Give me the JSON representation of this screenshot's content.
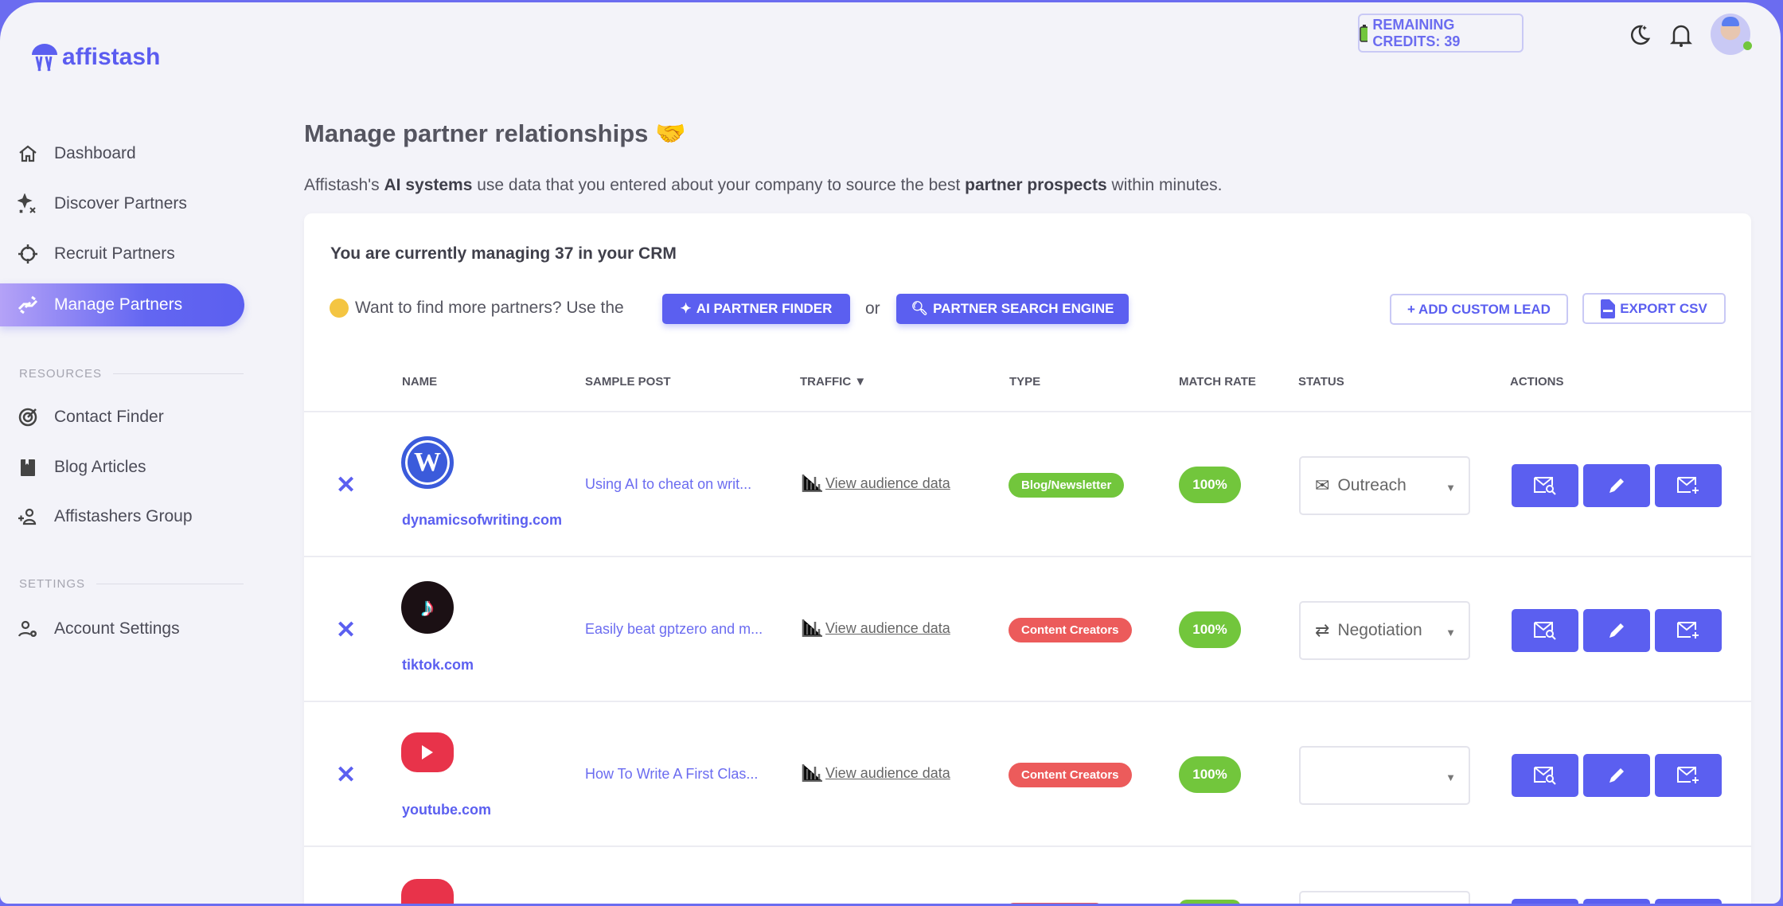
{
  "brand": {
    "name": "affistash"
  },
  "header": {
    "credits": "REMAINING CREDITS: 39"
  },
  "sidebar": {
    "items": [
      {
        "label": "Dashboard",
        "icon": "home-icon"
      },
      {
        "label": "Discover Partners",
        "icon": "sparkles-icon"
      },
      {
        "label": "Recruit Partners",
        "icon": "crosshair-icon"
      },
      {
        "label": "Manage Partners",
        "icon": "handshake-icon",
        "active": true
      }
    ],
    "resources_label": "RESOURCES",
    "resources": [
      {
        "label": "Contact Finder",
        "icon": "target-icon"
      },
      {
        "label": "Blog Articles",
        "icon": "book-icon"
      },
      {
        "label": "Affistashers Group",
        "icon": "add-user-icon"
      }
    ],
    "settings_label": "SETTINGS",
    "settings": [
      {
        "label": "Account Settings",
        "icon": "user-gear-icon"
      }
    ]
  },
  "main": {
    "title": "Manage partner relationships",
    "subtitle": {
      "p1": "Affistash's ",
      "b1": "AI systems",
      "p2": " use data that you entered about your company to source the best ",
      "b2": "partner prospects",
      "p3": " within minutes."
    },
    "managing": "You are currently managing 37 in your CRM",
    "find_more": "Want to find more partners? Use the",
    "or": "or",
    "ai_finder": "AI PARTNER FINDER",
    "search_engine": "PARTNER SEARCH ENGINE",
    "add_lead": "+ ADD CUSTOM LEAD",
    "export": "EXPORT CSV",
    "columns": [
      "NAME",
      "SAMPLE POST",
      "TRAFFIC ▼",
      "TYPE",
      "MATCH RATE",
      "STATUS",
      "ACTIONS"
    ],
    "rows": [
      {
        "domain": "dynamicsofwriting.com",
        "logo": "wordpress",
        "post": "Using AI to cheat on writ...",
        "traffic": "View audience data",
        "type": "Blog/Newsletter",
        "type_color": "#72c63c",
        "match": "100%",
        "status": "Outreach",
        "status_icon": "mail-search-icon"
      },
      {
        "domain": "tiktok.com",
        "logo": "tiktok",
        "post": "Easily beat gptzero and m...",
        "traffic": "View audience data",
        "type": "Content Creators",
        "type_color": "#ec5b5b",
        "match": "100%",
        "status": "Negotiation",
        "status_icon": "handshake-icon"
      },
      {
        "domain": "youtube.com",
        "logo": "youtube",
        "post": "How To Write A First Clas...",
        "traffic": "View audience data",
        "type": "Content Creators",
        "type_color": "#ec5b5b",
        "match": "100%",
        "status": "",
        "status_icon": ""
      },
      {
        "domain": "",
        "logo": "youtube",
        "post": "",
        "traffic": "",
        "type": "",
        "type_color": "#ec5b5b",
        "match": "",
        "status": "",
        "status_icon": ""
      }
    ]
  },
  "colors": {
    "accent": "#5b5ff0",
    "green": "#72c63c",
    "red": "#ec5b5b"
  }
}
